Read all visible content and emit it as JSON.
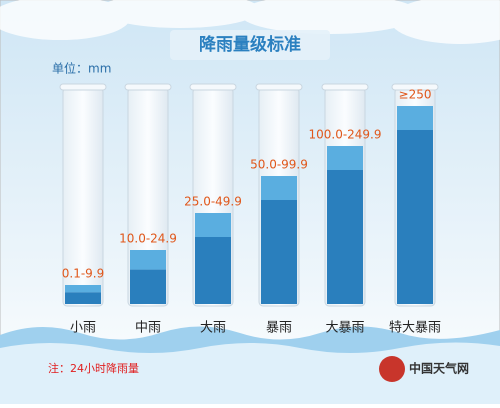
{
  "header": {
    "title": "降雨量级标准",
    "unit": "单位：mm"
  },
  "levels": [
    {
      "name": "小雨",
      "range": "0.1-9.9"
    },
    {
      "name": "中雨",
      "range": "10.0-24.9"
    },
    {
      "name": "大雨",
      "range": "25.0-49.9"
    },
    {
      "name": "暴雨",
      "range": "50.0-99.9"
    },
    {
      "name": "大暴雨",
      "range": "100.0-249.9"
    },
    {
      "name": "特大暴雨",
      "range": "≥250"
    }
  ],
  "footer": {
    "note": "注：24小时降雨量",
    "logo": "中国天气网"
  }
}
